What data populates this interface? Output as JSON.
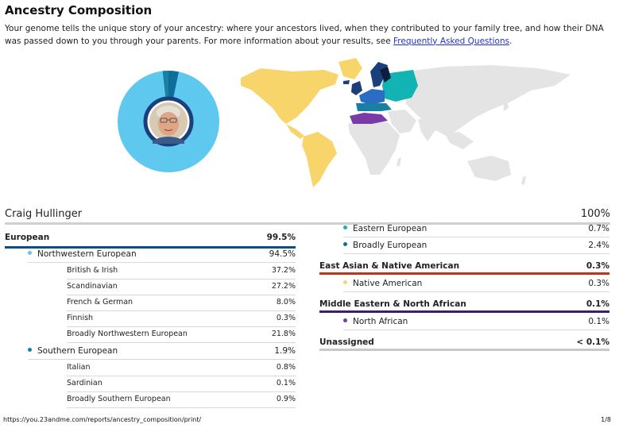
{
  "page": {
    "title": "Ancestry Composition",
    "intro_text": "Your genome tells the unique story of your ancestry: where your ancestors lived, when they contributed to your family tree, and how their DNA was passed down to you through your parents. For more information about your results, see ",
    "faq_link": "Frequently Asked Questions",
    "intro_end": "."
  },
  "profile": {
    "name": "Craig Hullinger",
    "total": "100%"
  },
  "left_column": {
    "european": {
      "label": "European",
      "value": "99.5%"
    },
    "nw_european": {
      "label": "Northwestern European",
      "value": "94.5%"
    },
    "nw_sub": [
      {
        "label": "British & Irish",
        "value": "37.2%"
      },
      {
        "label": "Scandinavian",
        "value": "27.2%"
      },
      {
        "label": "French & German",
        "value": "8.0%"
      },
      {
        "label": "Finnish",
        "value": "0.3%"
      },
      {
        "label": "Broadly Northwestern European",
        "value": "21.8%"
      }
    ],
    "s_european": {
      "label": "Southern European",
      "value": "1.9%"
    },
    "s_sub": [
      {
        "label": "Italian",
        "value": "0.8%"
      },
      {
        "label": "Sardinian",
        "value": "0.1%"
      },
      {
        "label": "Broadly Southern European",
        "value": "0.9%"
      }
    ]
  },
  "right_column": {
    "eastern_european": {
      "label": "Eastern European",
      "value": "0.7%"
    },
    "broadly_european": {
      "label": "Broadly European",
      "value": "2.4%"
    },
    "east_asian": {
      "label": "East Asian & Native American",
      "value": "0.3%"
    },
    "native_american": {
      "label": "Native American",
      "value": "0.3%"
    },
    "middle_eastern": {
      "label": "Middle Eastern & North African",
      "value": "0.1%"
    },
    "north_african": {
      "label": "North African",
      "value": "0.1%"
    },
    "unassigned": {
      "label": "Unassigned",
      "value": "< 0.1%"
    }
  },
  "colors": {
    "european_bar": "#0a4f86",
    "nw_european": "#5ec8ee",
    "s_european": "#1a7fa3",
    "eastern_european": "#12b3b3",
    "broadly_european": "#0e6e9a",
    "east_asian_bar": "#c2331b",
    "native_american": "#f7d56b",
    "middle_eastern_bar": "#3c1d6e",
    "north_african": "#7a3ba8",
    "unassigned_bar": "#c8c8c8"
  },
  "footer": {
    "url": "https://you.23andme.com/reports/ancestry_composition/print/",
    "page": "1/8"
  }
}
